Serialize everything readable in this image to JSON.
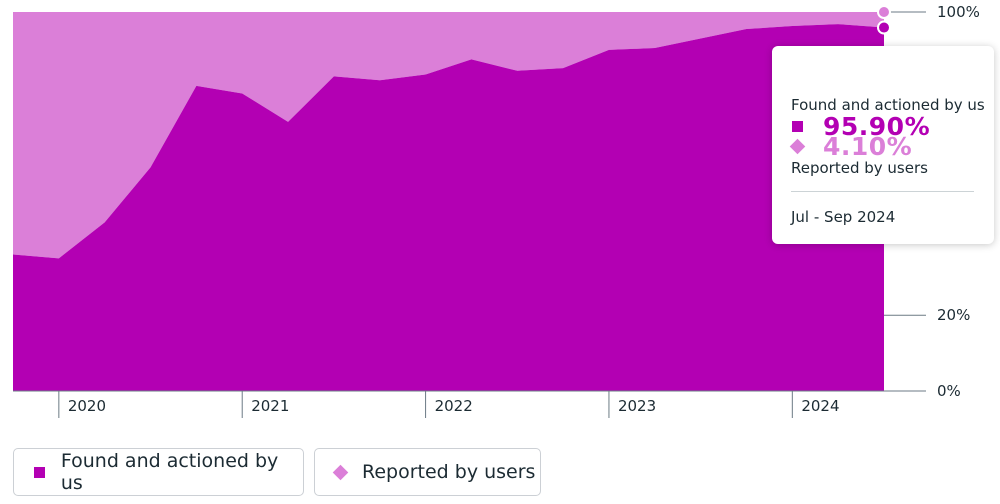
{
  "colors": {
    "found": "#b300b3",
    "reported": "#db7fd8",
    "axis": "#6b7a84",
    "text": "#1c2b33"
  },
  "chart_data": {
    "type": "area",
    "stacked": true,
    "normalized": true,
    "x": [
      "2019 Q4",
      "2020 Q1",
      "2020 Q2",
      "2020 Q3",
      "2020 Q4",
      "2021 Q1",
      "2021 Q2",
      "2021 Q3",
      "2021 Q4",
      "2022 Q1",
      "2022 Q2",
      "2022 Q3",
      "2022 Q4",
      "2023 Q1",
      "2023 Q2",
      "2023 Q3",
      "2023 Q4",
      "2024 Q1",
      "2024 Q2",
      "2024 Q3"
    ],
    "series": [
      {
        "name": "Found and actioned by us",
        "values": [
          36.0,
          35.0,
          44.5,
          59.0,
          80.5,
          78.5,
          71.0,
          83.0,
          82.0,
          83.5,
          87.5,
          84.5,
          85.2,
          90.0,
          90.5,
          93.0,
          95.5,
          96.3,
          96.8,
          95.9
        ]
      },
      {
        "name": "Reported by users",
        "values": [
          64.0,
          65.0,
          55.5,
          41.0,
          19.5,
          21.5,
          29.0,
          17.0,
          18.0,
          16.5,
          12.5,
          15.5,
          14.8,
          10.0,
          9.5,
          7.0,
          4.5,
          3.7,
          3.2,
          4.1
        ]
      }
    ],
    "ylim": [
      0,
      100
    ],
    "y_ticks": [
      "0%",
      "20%",
      "100%"
    ],
    "y_tick_values": [
      0,
      20,
      100
    ],
    "x_tick_labels": [
      "2020",
      "2021",
      "2022",
      "2023",
      "2024"
    ],
    "x_tick_positions": [
      1,
      5,
      9,
      13,
      17
    ],
    "legend_placement": "bottom-left",
    "highlight_index": 19
  },
  "tooltip": {
    "found_value": "95.90%",
    "found_label": "Found and actioned by us",
    "reported_value": "4.10%",
    "reported_label": "Reported by users",
    "period": "Jul - Sep 2024"
  },
  "legend": {
    "found_label": "Found and actioned by us",
    "reported_label": "Reported by users"
  }
}
